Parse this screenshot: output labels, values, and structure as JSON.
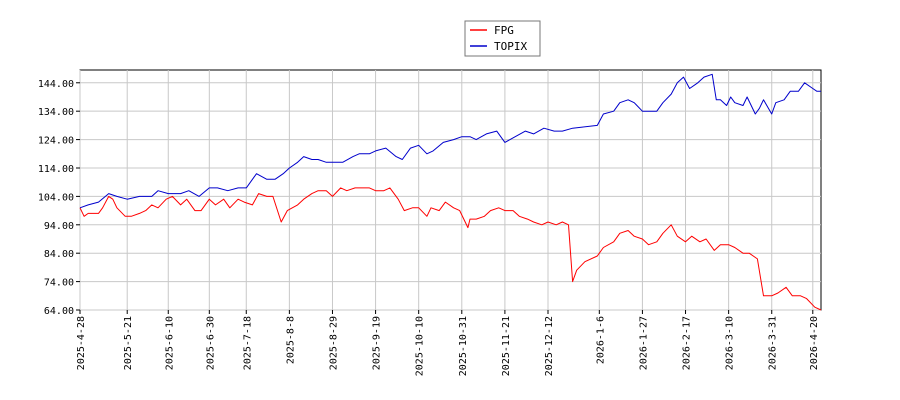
{
  "chart_data": {
    "type": "line",
    "title": "",
    "xlabel": "",
    "ylabel": "",
    "ylim": [
      64,
      148.5
    ],
    "xlim": [
      "2025-04-28",
      "2026-04-24"
    ],
    "grid": true,
    "legend": "top-center",
    "y_ticks": [
      "64.00",
      "74.00",
      "84.00",
      "94.00",
      "104.00",
      "114.00",
      "124.00",
      "134.00",
      "144.00"
    ],
    "x_ticks": [
      "2025-4-28",
      "2025-5-21",
      "2025-6-10",
      "2025-6-30",
      "2025-7-18",
      "2025-8-8",
      "2025-8-29",
      "2025-9-19",
      "2025-10-10",
      "2025-10-31",
      "2025-11-21",
      "2025-12-12",
      "2026-1-6",
      "2026-1-27",
      "2026-2-17",
      "2026-3-10",
      "2026-3-31",
      "2026-4-20"
    ],
    "series": [
      {
        "name": "FPG",
        "color": "#ff0000",
        "points": [
          [
            "2025-04-28",
            100
          ],
          [
            "2025-04-30",
            97
          ],
          [
            "2025-05-02",
            98
          ],
          [
            "2025-05-07",
            98
          ],
          [
            "2025-05-09",
            100
          ],
          [
            "2025-05-12",
            104
          ],
          [
            "2025-05-14",
            103
          ],
          [
            "2025-05-16",
            100
          ],
          [
            "2025-05-20",
            97
          ],
          [
            "2025-05-23",
            97
          ],
          [
            "2025-05-27",
            98
          ],
          [
            "2025-05-30",
            99
          ],
          [
            "2025-06-02",
            101
          ],
          [
            "2025-06-05",
            100
          ],
          [
            "2025-06-09",
            103
          ],
          [
            "2025-06-12",
            104
          ],
          [
            "2025-06-16",
            101
          ],
          [
            "2025-06-19",
            103
          ],
          [
            "2025-06-23",
            99
          ],
          [
            "2025-06-26",
            99
          ],
          [
            "2025-06-30",
            103
          ],
          [
            "2025-07-03",
            101
          ],
          [
            "2025-07-07",
            103
          ],
          [
            "2025-07-10",
            100
          ],
          [
            "2025-07-14",
            103
          ],
          [
            "2025-07-17",
            102
          ],
          [
            "2025-07-21",
            101
          ],
          [
            "2025-07-24",
            105
          ],
          [
            "2025-07-28",
            104
          ],
          [
            "2025-07-31",
            104
          ],
          [
            "2025-08-04",
            95
          ],
          [
            "2025-08-07",
            99
          ],
          [
            "2025-08-12",
            101
          ],
          [
            "2025-08-15",
            103
          ],
          [
            "2025-08-19",
            105
          ],
          [
            "2025-08-22",
            106
          ],
          [
            "2025-08-26",
            106
          ],
          [
            "2025-08-29",
            104
          ],
          [
            "2025-09-02",
            107
          ],
          [
            "2025-09-05",
            106
          ],
          [
            "2025-09-09",
            107
          ],
          [
            "2025-09-12",
            107
          ],
          [
            "2025-09-16",
            107
          ],
          [
            "2025-09-19",
            106
          ],
          [
            "2025-09-23",
            106
          ],
          [
            "2025-09-26",
            107
          ],
          [
            "2025-09-30",
            103
          ],
          [
            "2025-10-03",
            99
          ],
          [
            "2025-10-07",
            100
          ],
          [
            "2025-10-10",
            100
          ],
          [
            "2025-10-14",
            97
          ],
          [
            "2025-10-16",
            100
          ],
          [
            "2025-10-20",
            99
          ],
          [
            "2025-10-23",
            102
          ],
          [
            "2025-10-27",
            100
          ],
          [
            "2025-10-30",
            99
          ],
          [
            "2025-11-03",
            93
          ],
          [
            "2025-11-04",
            96
          ],
          [
            "2025-11-07",
            96
          ],
          [
            "2025-11-11",
            97
          ],
          [
            "2025-11-14",
            99
          ],
          [
            "2025-11-18",
            100
          ],
          [
            "2025-11-21",
            99
          ],
          [
            "2025-11-25",
            99
          ],
          [
            "2025-11-28",
            97
          ],
          [
            "2025-12-02",
            96
          ],
          [
            "2025-12-05",
            95
          ],
          [
            "2025-12-09",
            94
          ],
          [
            "2025-12-12",
            95
          ],
          [
            "2025-12-16",
            94
          ],
          [
            "2025-12-19",
            95
          ],
          [
            "2025-12-22",
            94
          ],
          [
            "2025-12-24",
            74
          ],
          [
            "2025-12-26",
            78
          ],
          [
            "2025-12-30",
            81
          ],
          [
            "2026-01-05",
            83
          ],
          [
            "2026-01-08",
            86
          ],
          [
            "2026-01-13",
            88
          ],
          [
            "2026-01-16",
            91
          ],
          [
            "2026-01-20",
            92
          ],
          [
            "2026-01-23",
            90
          ],
          [
            "2026-01-27",
            89
          ],
          [
            "2026-01-30",
            87
          ],
          [
            "2026-02-03",
            88
          ],
          [
            "2026-02-06",
            91
          ],
          [
            "2026-02-10",
            94
          ],
          [
            "2026-02-13",
            90
          ],
          [
            "2026-02-17",
            88
          ],
          [
            "2026-02-20",
            90
          ],
          [
            "2026-02-24",
            88
          ],
          [
            "2026-02-27",
            89
          ],
          [
            "2026-03-03",
            85
          ],
          [
            "2026-03-06",
            87
          ],
          [
            "2026-03-10",
            87
          ],
          [
            "2026-03-13",
            86
          ],
          [
            "2026-03-17",
            84
          ],
          [
            "2026-03-20",
            84
          ],
          [
            "2026-03-24",
            82
          ],
          [
            "2026-03-27",
            69
          ],
          [
            "2026-03-31",
            69
          ],
          [
            "2026-04-03",
            70
          ],
          [
            "2026-04-07",
            72
          ],
          [
            "2026-04-10",
            69
          ],
          [
            "2026-04-14",
            69
          ],
          [
            "2026-04-17",
            68
          ],
          [
            "2026-04-21",
            65
          ],
          [
            "2026-04-24",
            64
          ]
        ]
      },
      {
        "name": "TOPIX",
        "color": "#0000cc",
        "points": [
          [
            "2025-04-28",
            100
          ],
          [
            "2025-05-02",
            101
          ],
          [
            "2025-05-07",
            102
          ],
          [
            "2025-05-12",
            105
          ],
          [
            "2025-05-16",
            104
          ],
          [
            "2025-05-21",
            103
          ],
          [
            "2025-05-27",
            104
          ],
          [
            "2025-06-02",
            104
          ],
          [
            "2025-06-05",
            106
          ],
          [
            "2025-06-10",
            105
          ],
          [
            "2025-06-16",
            105
          ],
          [
            "2025-06-20",
            106
          ],
          [
            "2025-06-25",
            104
          ],
          [
            "2025-06-30",
            107
          ],
          [
            "2025-07-04",
            107
          ],
          [
            "2025-07-09",
            106
          ],
          [
            "2025-07-14",
            107
          ],
          [
            "2025-07-18",
            107
          ],
          [
            "2025-07-23",
            112
          ],
          [
            "2025-07-28",
            110
          ],
          [
            "2025-08-01",
            110
          ],
          [
            "2025-08-05",
            112
          ],
          [
            "2025-08-08",
            114
          ],
          [
            "2025-08-12",
            116
          ],
          [
            "2025-08-15",
            118
          ],
          [
            "2025-08-19",
            117
          ],
          [
            "2025-08-22",
            117
          ],
          [
            "2025-08-26",
            116
          ],
          [
            "2025-08-29",
            116
          ],
          [
            "2025-09-03",
            116
          ],
          [
            "2025-09-08",
            118
          ],
          [
            "2025-09-11",
            119
          ],
          [
            "2025-09-16",
            119
          ],
          [
            "2025-09-19",
            120
          ],
          [
            "2025-09-24",
            121
          ],
          [
            "2025-09-29",
            118
          ],
          [
            "2025-10-02",
            117
          ],
          [
            "2025-10-06",
            121
          ],
          [
            "2025-10-10",
            122
          ],
          [
            "2025-10-14",
            119
          ],
          [
            "2025-10-17",
            120
          ],
          [
            "2025-10-22",
            123
          ],
          [
            "2025-10-27",
            124
          ],
          [
            "2025-10-31",
            125
          ],
          [
            "2025-11-04",
            125
          ],
          [
            "2025-11-07",
            124
          ],
          [
            "2025-11-12",
            126
          ],
          [
            "2025-11-17",
            127
          ],
          [
            "2025-11-21",
            123
          ],
          [
            "2025-11-26",
            125
          ],
          [
            "2025-12-01",
            127
          ],
          [
            "2025-12-05",
            126
          ],
          [
            "2025-12-10",
            128
          ],
          [
            "2025-12-15",
            127
          ],
          [
            "2025-12-19",
            127
          ],
          [
            "2025-12-24",
            128
          ],
          [
            "2026-01-05",
            129
          ],
          [
            "2026-01-08",
            133
          ],
          [
            "2026-01-13",
            134
          ],
          [
            "2026-01-16",
            137
          ],
          [
            "2026-01-20",
            138
          ],
          [
            "2026-01-23",
            137
          ],
          [
            "2026-01-27",
            134
          ],
          [
            "2026-01-30",
            134
          ],
          [
            "2026-02-03",
            134
          ],
          [
            "2026-02-06",
            137
          ],
          [
            "2026-02-10",
            140
          ],
          [
            "2026-02-13",
            144
          ],
          [
            "2026-02-16",
            146
          ],
          [
            "2026-02-19",
            142
          ],
          [
            "2026-02-23",
            144
          ],
          [
            "2026-02-26",
            146
          ],
          [
            "2026-03-02",
            147
          ],
          [
            "2026-03-04",
            138
          ],
          [
            "2026-03-06",
            138
          ],
          [
            "2026-03-09",
            136
          ],
          [
            "2026-03-11",
            139
          ],
          [
            "2026-03-13",
            137
          ],
          [
            "2026-03-17",
            136
          ],
          [
            "2026-03-19",
            139
          ],
          [
            "2026-03-23",
            133
          ],
          [
            "2026-03-25",
            135
          ],
          [
            "2026-03-27",
            138
          ],
          [
            "2026-03-31",
            133
          ],
          [
            "2026-04-02",
            137
          ],
          [
            "2026-04-06",
            138
          ],
          [
            "2026-04-09",
            141
          ],
          [
            "2026-04-13",
            141
          ],
          [
            "2026-04-16",
            144
          ],
          [
            "2026-04-20",
            142
          ],
          [
            "2026-04-22",
            141
          ],
          [
            "2026-04-24",
            141
          ]
        ]
      }
    ]
  }
}
